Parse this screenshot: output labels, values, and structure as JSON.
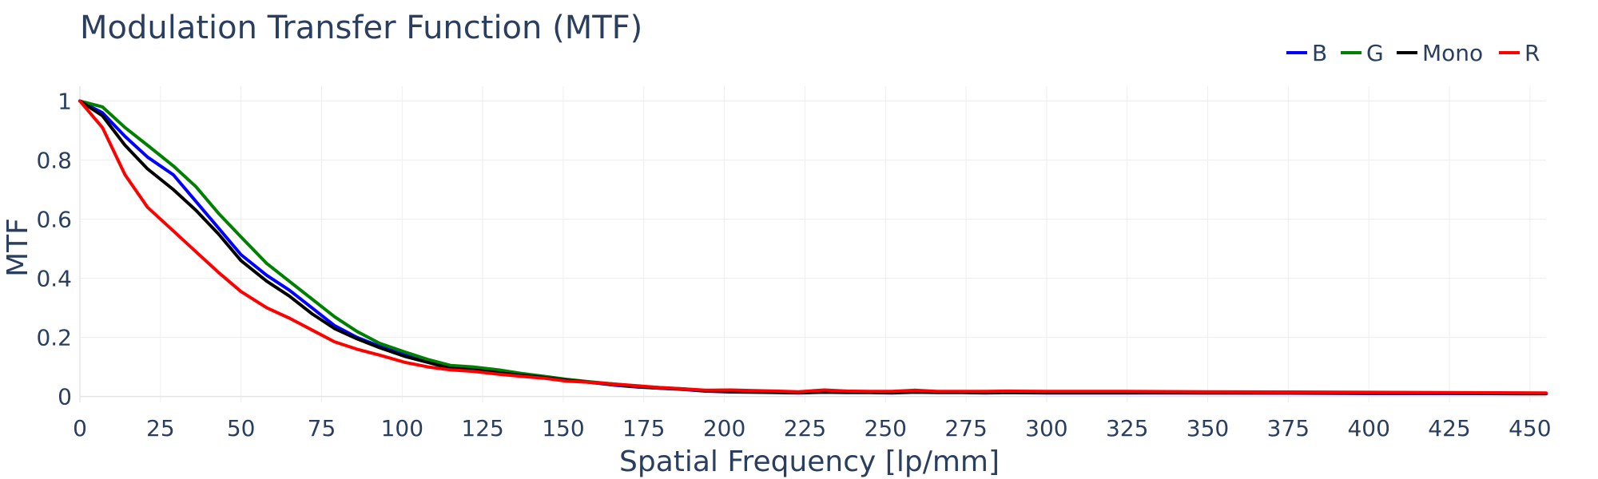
{
  "chart_data": {
    "type": "line",
    "title": "Modulation Transfer Function (MTF)",
    "xlabel": "Spatial Frequency [lp/mm]",
    "ylabel": "MTF",
    "xlim": [
      0,
      455
    ],
    "ylim": [
      -0.02,
      1.05
    ],
    "x_ticks": [
      0,
      25,
      50,
      75,
      100,
      125,
      150,
      175,
      200,
      225,
      250,
      275,
      300,
      325,
      350,
      375,
      400,
      425,
      450
    ],
    "y_ticks": [
      0,
      0.2,
      0.4,
      0.6,
      0.8,
      1
    ],
    "y_tick_labels": [
      "0",
      "0.2",
      "0.4",
      "0.6",
      "0.8",
      "1"
    ],
    "grid": true,
    "legend_position": "top-right",
    "series": [
      {
        "name": "B",
        "color": "#0000ff",
        "x": [
          0,
          7,
          14,
          21,
          29,
          36,
          43,
          50,
          58,
          65,
          72,
          79,
          86,
          93,
          101,
          108,
          115,
          122,
          130,
          137,
          144,
          151,
          158,
          166,
          173,
          180,
          187,
          194,
          202,
          209,
          216,
          223,
          231,
          238,
          245,
          252,
          259,
          266,
          274,
          281,
          288,
          300,
          325,
          350,
          375,
          400,
          425,
          455
        ],
        "y": [
          1.0,
          0.96,
          0.88,
          0.81,
          0.75,
          0.66,
          0.57,
          0.48,
          0.41,
          0.36,
          0.3,
          0.24,
          0.2,
          0.17,
          0.14,
          0.12,
          0.1,
          0.095,
          0.085,
          0.075,
          0.065,
          0.055,
          0.048,
          0.038,
          0.032,
          0.028,
          0.024,
          0.018,
          0.015,
          0.014,
          0.013,
          0.012,
          0.014,
          0.013,
          0.013,
          0.012,
          0.014,
          0.013,
          0.013,
          0.012,
          0.013,
          0.012,
          0.012,
          0.012,
          0.011,
          0.01,
          0.01,
          0.009
        ]
      },
      {
        "name": "G",
        "color": "#008000",
        "x": [
          0,
          7,
          14,
          21,
          29,
          36,
          43,
          50,
          58,
          65,
          72,
          79,
          86,
          93,
          101,
          108,
          115,
          122,
          130,
          137,
          144,
          151,
          158,
          166,
          173,
          180,
          187,
          194,
          202,
          209,
          216,
          223,
          231,
          238,
          245,
          252,
          259,
          266,
          274,
          281,
          288,
          300,
          325,
          350,
          375,
          400,
          425,
          455
        ],
        "y": [
          1.0,
          0.98,
          0.91,
          0.85,
          0.78,
          0.71,
          0.62,
          0.54,
          0.45,
          0.39,
          0.33,
          0.27,
          0.22,
          0.18,
          0.15,
          0.125,
          0.105,
          0.1,
          0.09,
          0.078,
          0.068,
          0.058,
          0.05,
          0.042,
          0.035,
          0.03,
          0.026,
          0.02,
          0.017,
          0.016,
          0.015,
          0.014,
          0.016,
          0.015,
          0.014,
          0.014,
          0.015,
          0.014,
          0.014,
          0.014,
          0.015,
          0.014,
          0.014,
          0.013,
          0.013,
          0.012,
          0.011,
          0.01
        ]
      },
      {
        "name": "Mono",
        "color": "#000000",
        "x": [
          0,
          7,
          14,
          21,
          29,
          36,
          43,
          50,
          58,
          65,
          72,
          79,
          86,
          93,
          101,
          108,
          115,
          122,
          130,
          137,
          144,
          151,
          158,
          166,
          173,
          180,
          187,
          194,
          202,
          209,
          216,
          223,
          231,
          238,
          245,
          252,
          259,
          266,
          274,
          281,
          288,
          300,
          325,
          350,
          375,
          400,
          425,
          455
        ],
        "y": [
          1.0,
          0.95,
          0.85,
          0.77,
          0.7,
          0.63,
          0.55,
          0.46,
          0.39,
          0.34,
          0.28,
          0.23,
          0.195,
          0.165,
          0.135,
          0.115,
          0.095,
          0.09,
          0.08,
          0.072,
          0.064,
          0.055,
          0.048,
          0.04,
          0.033,
          0.028,
          0.025,
          0.019,
          0.016,
          0.015,
          0.014,
          0.013,
          0.015,
          0.014,
          0.014,
          0.013,
          0.015,
          0.014,
          0.014,
          0.013,
          0.014,
          0.013,
          0.013,
          0.012,
          0.012,
          0.011,
          0.011,
          0.01
        ]
      },
      {
        "name": "R",
        "color": "#ff0000",
        "x": [
          0,
          7,
          14,
          21,
          29,
          36,
          43,
          50,
          58,
          65,
          72,
          79,
          86,
          93,
          101,
          108,
          115,
          122,
          130,
          137,
          144,
          151,
          158,
          166,
          173,
          180,
          187,
          194,
          202,
          209,
          216,
          223,
          231,
          238,
          245,
          252,
          259,
          266,
          274,
          281,
          288,
          300,
          325,
          350,
          375,
          400,
          425,
          455
        ],
        "y": [
          1.0,
          0.91,
          0.75,
          0.64,
          0.56,
          0.49,
          0.42,
          0.355,
          0.3,
          0.265,
          0.225,
          0.185,
          0.16,
          0.14,
          0.115,
          0.1,
          0.09,
          0.085,
          0.075,
          0.068,
          0.062,
          0.052,
          0.048,
          0.042,
          0.036,
          0.03,
          0.026,
          0.021,
          0.022,
          0.02,
          0.018,
          0.016,
          0.022,
          0.018,
          0.017,
          0.017,
          0.021,
          0.017,
          0.017,
          0.017,
          0.018,
          0.017,
          0.017,
          0.016,
          0.015,
          0.014,
          0.013,
          0.012
        ]
      }
    ]
  }
}
